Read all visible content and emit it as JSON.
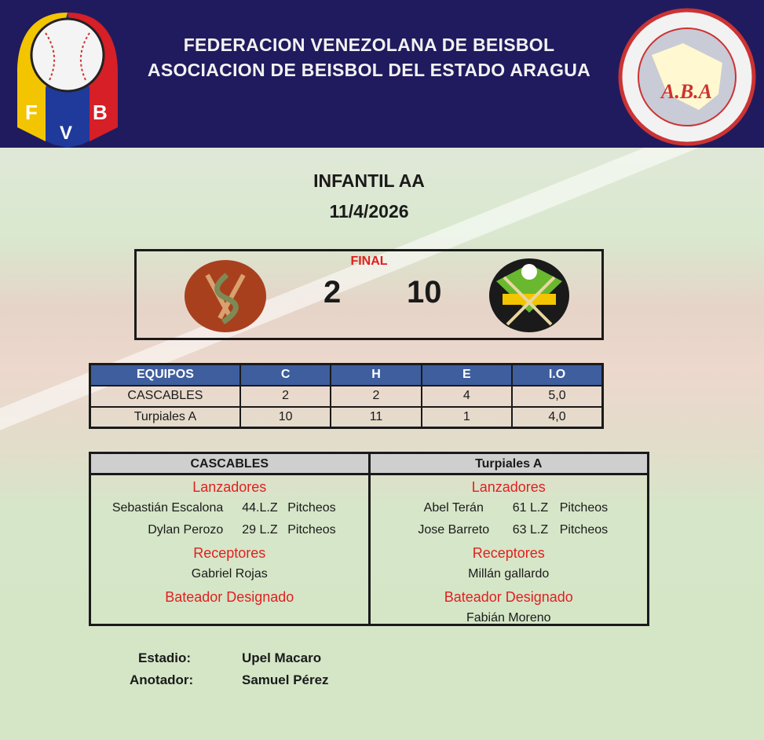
{
  "header": {
    "line1": "FEDERACION VENEZOLANA DE BEISBOL",
    "line2": "ASOCIACION DE BEISBOL DEL ESTADO ARAGUA",
    "left_logo": "FVB",
    "right_logo": "ASOCIACIÓN DE BEISBOL AFICIONADO DEL ESTADO ARAGUA A.B.A"
  },
  "game": {
    "category": "INFANTIL AA",
    "date": "11/4/2026",
    "status": "FINAL",
    "away_score": "2",
    "home_score": "10",
    "away_logo": "Cascables",
    "home_logo": "Turpiales"
  },
  "stats": {
    "headers": [
      "EQUIPOS",
      "C",
      "H",
      "E",
      "I.O"
    ],
    "rows": [
      [
        "CASCABLES",
        "2",
        "2",
        "4",
        "5,0"
      ],
      [
        "Turpiales A",
        "10",
        "11",
        "1",
        "4,0"
      ]
    ]
  },
  "lineup": [
    {
      "team": "CASCABLES",
      "pitchers_label": "Lanzadores",
      "pitchers": [
        [
          "Sebastián Escalona",
          "44.L.Z",
          "Pitcheos"
        ],
        [
          "Dylan Perozo",
          "29 L.Z",
          "Pitcheos"
        ]
      ],
      "catchers_label": "Receptores",
      "catcher": "Gabriel Rojas",
      "dh_label": "Bateador Designado",
      "dh": ""
    },
    {
      "team": "Turpiales A",
      "pitchers_label": "Lanzadores",
      "pitchers": [
        [
          "Abel Terán",
          "61 L.Z",
          "Pitcheos"
        ],
        [
          "Jose Barreto",
          "63 L.Z",
          "Pitcheos"
        ]
      ],
      "catchers_label": "Receptores",
      "catcher": "Millán gallardo",
      "dh_label": "Bateador Designado",
      "dh": "Fabián Moreno"
    }
  ],
  "footer": {
    "stadium_label": "Estadio:",
    "stadium": "Upel Macaro",
    "scorer_label": "Anotador:",
    "scorer": "Samuel Pérez"
  },
  "colors": {
    "header_bg": "#201b5e",
    "table_header": "#3e5e9e",
    "section_red": "#e02020"
  }
}
